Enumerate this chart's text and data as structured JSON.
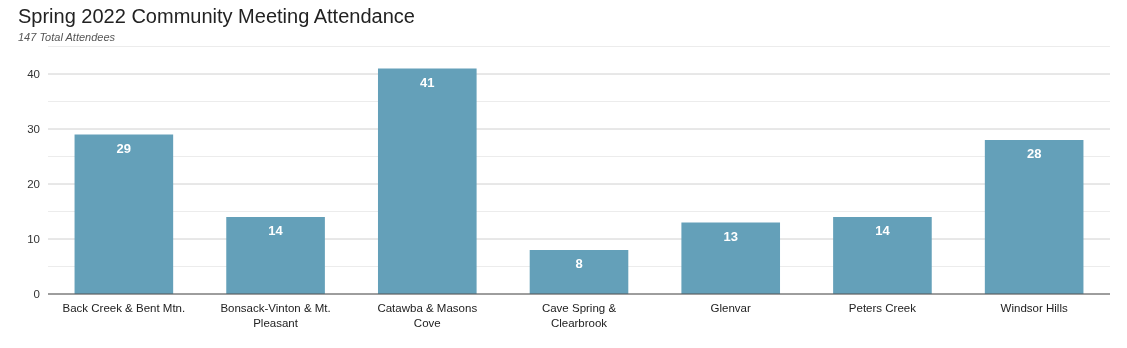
{
  "chart_data": {
    "type": "bar",
    "title": "Spring 2022 Community Meeting Attendance",
    "subtitle": "147 Total Attendees",
    "categories": [
      "Back Creek & Bent Mtn.",
      "Bonsack-Vinton & Mt. Pleasant",
      "Catawba & Masons Cove",
      "Cave Spring & Clearbrook",
      "Glenvar",
      "Peters Creek",
      "Windsor Hills"
    ],
    "values": [
      29,
      14,
      41,
      8,
      13,
      14,
      28
    ],
    "color": "#64a0b9",
    "data_labels": true,
    "ylim": [
      0,
      45
    ],
    "yticks": [
      0,
      {
        "value": 5,
        "label": null
      },
      10,
      {
        "value": 15,
        "label": null
      },
      20,
      {
        "value": 25,
        "label": null
      },
      30,
      {
        "value": 35,
        "label": null
      },
      40,
      {
        "value": 45,
        "label": null
      }
    ],
    "grid": "y"
  }
}
